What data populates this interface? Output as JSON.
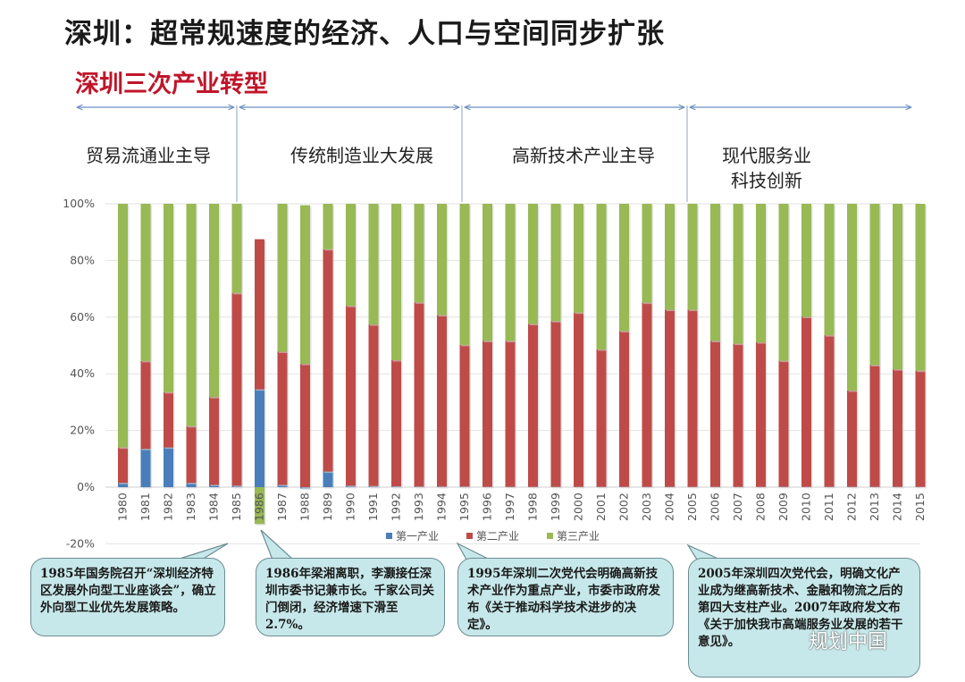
{
  "title": "深圳：超常规速度的经济、人口与空间同步扩张",
  "subtitle": "深圳三次产业转型",
  "phases": [
    {
      "label": "贸易流通业主导"
    },
    {
      "label": "传统制造业大发展"
    },
    {
      "label": "高新技术产业主导"
    },
    {
      "label": "现代服务业\n科技创新"
    }
  ],
  "callouts": [
    {
      "text": "1985年国务院召开“深圳经济特区发展外向型工业座谈会”，确立外向型工业优先发展策略。"
    },
    {
      "text": "1986年梁湘离职，李灏接任深圳市委书记兼市长。千家公司关门倒闭，经济增速下滑至2.7%。"
    },
    {
      "text": "1995年深圳二次党代会明确高新技术产业作为重点产业，市委市政府发布《关于推动科学技术进步的决定》。"
    },
    {
      "text": "2005年深圳四次党代会，明确文化产业成为继高新技术、金融和物流之后的第四大支柱产业。2007年政府发文布《关于加快我市高端服务业发展的若干意见》。"
    }
  ],
  "watermark": "规划中国",
  "chart_data": {
    "type": "bar",
    "stacked": true,
    "ylim": [
      -20,
      100
    ],
    "yticks": [
      "-20%",
      "0%",
      "20%",
      "40%",
      "60%",
      "80%",
      "100%"
    ],
    "categories": [
      "1980",
      "1981",
      "1982",
      "1983",
      "1984",
      "1985",
      "1986",
      "1987",
      "1988",
      "1989",
      "1990",
      "1991",
      "1992",
      "1993",
      "1994",
      "1995",
      "1996",
      "1997",
      "1998",
      "1999",
      "2000",
      "2001",
      "2002",
      "2003",
      "2004",
      "2005",
      "2006",
      "2007",
      "2008",
      "2009",
      "2010",
      "2011",
      "2012",
      "2013",
      "2014",
      "2015"
    ],
    "series": [
      {
        "name": "第一产业",
        "color": "#4a7ebb",
        "values": [
          1.5,
          13.5,
          14,
          1.5,
          0.8,
          0.5,
          34.5,
          0.8,
          -0.5,
          5.5,
          0.5,
          0.4,
          0.3,
          0.2,
          0.2,
          0.2,
          0.1,
          0.1,
          0.1,
          0.1,
          0.1,
          0.1,
          0.1,
          0.1,
          0.1,
          0.1,
          0.1,
          0.1,
          0.1,
          0.1,
          0.1,
          0.1,
          0.1,
          0.1,
          0.1,
          0.1
        ]
      },
      {
        "name": "第二产业",
        "color": "#be4b48",
        "values": [
          12.5,
          31,
          19.5,
          20,
          31,
          68,
          53,
          47,
          43.5,
          78.5,
          63.5,
          57,
          44.5,
          65,
          60.5,
          50,
          51.5,
          51.5,
          57.5,
          58.5,
          61.5,
          48.5,
          55,
          65,
          62.5,
          62.5,
          51.5,
          50.5,
          51,
          44.5,
          60,
          53.5,
          34,
          43,
          41.5,
          41
        ]
      },
      {
        "name": "第三产业",
        "color": "#98b954",
        "values": [
          86,
          55.5,
          66.5,
          78.5,
          68.2,
          31.5,
          -13,
          52.2,
          56,
          16,
          36,
          42.6,
          55.2,
          34.8,
          39.3,
          49.8,
          48.4,
          48.4,
          42.4,
          41.4,
          38.4,
          51.4,
          44.9,
          34.9,
          37.4,
          37.4,
          48.4,
          49.4,
          48.9,
          55.4,
          39.9,
          46.4,
          65.9,
          56.9,
          58.4,
          58.9
        ]
      }
    ]
  }
}
